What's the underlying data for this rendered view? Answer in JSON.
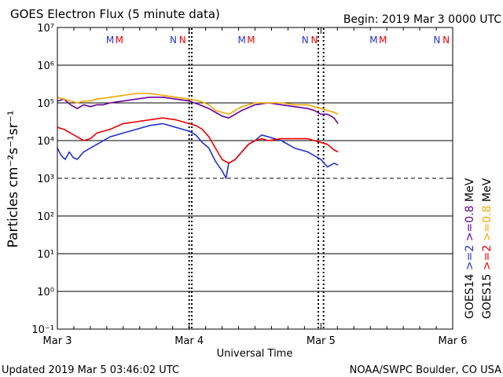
{
  "header": {
    "title": "GOES Electron Flux (5 minute data)",
    "begin": "Begin: 2019 Mar 3 0000 UTC"
  },
  "footer": {
    "updated": "Updated 2019 Mar  5 03:46:02 UTC",
    "credit": "NOAA/SWPC Boulder, CO USA"
  },
  "chart_data": {
    "type": "line",
    "title": "GOES Electron Flux (5 minute data)",
    "xlabel": "Universal Time",
    "ylabel": "Particles cm⁻²s⁻¹sr⁻¹",
    "yscale": "log",
    "ylim_exponent": [
      -1,
      7
    ],
    "xlim_days": [
      0,
      3
    ],
    "x_unit": "days since 2019 Mar 3 0000 UTC",
    "xticks": [
      {
        "day": 0,
        "label": "Mar 3"
      },
      {
        "day": 1,
        "label": "Mar 4"
      },
      {
        "day": 2,
        "label": "Mar 5"
      },
      {
        "day": 3,
        "label": "Mar 6"
      }
    ],
    "yticks": [
      {
        "exp": -1,
        "label": "10⁻¹"
      },
      {
        "exp": 0,
        "label": "10⁰"
      },
      {
        "exp": 1,
        "label": "10¹"
      },
      {
        "exp": 2,
        "label": "10²"
      },
      {
        "exp": 3,
        "label": "10³"
      },
      {
        "exp": 4,
        "label": "10⁴"
      },
      {
        "exp": 5,
        "label": "10⁵"
      },
      {
        "exp": 6,
        "label": "10⁶"
      },
      {
        "exp": 7,
        "label": "10⁷"
      }
    ],
    "gridlines_exp": [
      0,
      1,
      2,
      4,
      5,
      6
    ],
    "threshold": {
      "value": 1000,
      "style": "dashed"
    },
    "eclipse_markers": [
      {
        "day": 0.4,
        "label": "M",
        "color": "#2233cc"
      },
      {
        "day": 0.47,
        "label": "M",
        "color": "#ee0000"
      },
      {
        "day": 0.88,
        "label": "N",
        "color": "#2233cc"
      },
      {
        "day": 0.95,
        "label": "N",
        "color": "#ee0000"
      },
      {
        "day": 1.4,
        "label": "M",
        "color": "#2233cc"
      },
      {
        "day": 1.47,
        "label": "M",
        "color": "#ee0000"
      },
      {
        "day": 1.88,
        "label": "N",
        "color": "#2233cc"
      },
      {
        "day": 1.95,
        "label": "N",
        "color": "#ee0000"
      },
      {
        "day": 2.4,
        "label": "M",
        "color": "#2233cc"
      },
      {
        "day": 2.47,
        "label": "M",
        "color": "#ee0000"
      },
      {
        "day": 2.88,
        "label": "N",
        "color": "#2233cc"
      },
      {
        "day": 2.95,
        "label": "N",
        "color": "#ee0000"
      }
    ],
    "local_noon_lines_days": [
      1.0,
      1.02,
      1.98,
      2.02
    ],
    "legend": {
      "position": "right",
      "rows": [
        {
          "sat": "GOES14",
          "items": [
            {
              "text": ">=2",
              "color": "#2233cc"
            },
            {
              "text": ">=0.8",
              "color": "#660099"
            },
            {
              "text": "MeV",
              "color": "#000000"
            }
          ]
        },
        {
          "sat": "GOES15",
          "items": [
            {
              "text": ">=2",
              "color": "#ee0000"
            },
            {
              "text": ">=0.8",
              "color": "#f0a800"
            },
            {
              "text": "MeV",
              "color": "#000000"
            }
          ]
        }
      ]
    },
    "series": [
      {
        "name": "GOES14 >=0.8 MeV",
        "color": "#660099",
        "points": [
          [
            0.0,
            5.05
          ],
          [
            0.05,
            5.1
          ],
          [
            0.1,
            4.95
          ],
          [
            0.15,
            4.85
          ],
          [
            0.2,
            4.95
          ],
          [
            0.25,
            4.9
          ],
          [
            0.3,
            4.95
          ],
          [
            0.35,
            4.95
          ],
          [
            0.4,
            5.0
          ],
          [
            0.5,
            5.05
          ],
          [
            0.6,
            5.1
          ],
          [
            0.7,
            5.15
          ],
          [
            0.8,
            5.15
          ],
          [
            0.9,
            5.1
          ],
          [
            1.0,
            5.05
          ],
          [
            1.08,
            4.95
          ],
          [
            1.15,
            4.85
          ],
          [
            1.2,
            4.75
          ],
          [
            1.25,
            4.65
          ],
          [
            1.3,
            4.6
          ],
          [
            1.35,
            4.7
          ],
          [
            1.4,
            4.8
          ],
          [
            1.5,
            4.95
          ],
          [
            1.6,
            5.0
          ],
          [
            1.7,
            4.95
          ],
          [
            1.8,
            4.9
          ],
          [
            1.9,
            4.85
          ],
          [
            1.95,
            4.8
          ],
          [
            2.0,
            4.7
          ],
          [
            2.05,
            4.7
          ],
          [
            2.1,
            4.6
          ],
          [
            2.13,
            4.45
          ]
        ]
      },
      {
        "name": "GOES15 >=0.8 MeV",
        "color": "#f0a800",
        "points": [
          [
            0.0,
            5.15
          ],
          [
            0.05,
            5.1
          ],
          [
            0.1,
            5.05
          ],
          [
            0.15,
            5.0
          ],
          [
            0.2,
            5.05
          ],
          [
            0.25,
            5.05
          ],
          [
            0.3,
            5.1
          ],
          [
            0.4,
            5.15
          ],
          [
            0.5,
            5.2
          ],
          [
            0.6,
            5.25
          ],
          [
            0.7,
            5.25
          ],
          [
            0.8,
            5.2
          ],
          [
            0.9,
            5.15
          ],
          [
            1.0,
            5.1
          ],
          [
            1.08,
            5.05
          ],
          [
            1.15,
            4.95
          ],
          [
            1.2,
            4.8
          ],
          [
            1.25,
            4.75
          ],
          [
            1.3,
            4.7
          ],
          [
            1.35,
            4.8
          ],
          [
            1.4,
            4.9
          ],
          [
            1.5,
            5.0
          ],
          [
            1.6,
            5.0
          ],
          [
            1.7,
            5.0
          ],
          [
            1.8,
            4.95
          ],
          [
            1.9,
            4.95
          ],
          [
            1.95,
            4.9
          ],
          [
            2.0,
            4.85
          ],
          [
            2.05,
            4.8
          ],
          [
            2.1,
            4.75
          ],
          [
            2.13,
            4.7
          ]
        ]
      },
      {
        "name": "GOES14 >=2 MeV",
        "color": "#2233cc",
        "points": [
          [
            0.0,
            3.8
          ],
          [
            0.03,
            3.6
          ],
          [
            0.06,
            3.5
          ],
          [
            0.09,
            3.7
          ],
          [
            0.12,
            3.55
          ],
          [
            0.15,
            3.5
          ],
          [
            0.2,
            3.7
          ],
          [
            0.25,
            3.8
          ],
          [
            0.3,
            3.9
          ],
          [
            0.4,
            4.1
          ],
          [
            0.5,
            4.2
          ],
          [
            0.6,
            4.3
          ],
          [
            0.7,
            4.4
          ],
          [
            0.8,
            4.45
          ],
          [
            0.9,
            4.35
          ],
          [
            1.0,
            4.25
          ],
          [
            1.05,
            4.15
          ],
          [
            1.1,
            3.95
          ],
          [
            1.15,
            3.8
          ],
          [
            1.2,
            3.45
          ],
          [
            1.25,
            3.2
          ],
          [
            1.28,
            3.0
          ],
          [
            1.3,
            3.4
          ],
          [
            1.35,
            3.5
          ],
          [
            1.4,
            3.7
          ],
          [
            1.45,
            3.9
          ],
          [
            1.5,
            4.0
          ],
          [
            1.55,
            4.15
          ],
          [
            1.6,
            4.1
          ],
          [
            1.7,
            4.0
          ],
          [
            1.8,
            3.8
          ],
          [
            1.9,
            3.7
          ],
          [
            1.95,
            3.6
          ],
          [
            2.0,
            3.5
          ],
          [
            2.05,
            3.3
          ],
          [
            2.1,
            3.4
          ],
          [
            2.13,
            3.35
          ]
        ]
      },
      {
        "name": "GOES15 >=2 MeV",
        "color": "#ee0000",
        "points": [
          [
            0.0,
            4.35
          ],
          [
            0.05,
            4.3
          ],
          [
            0.1,
            4.2
          ],
          [
            0.15,
            4.1
          ],
          [
            0.2,
            4.0
          ],
          [
            0.25,
            4.05
          ],
          [
            0.3,
            4.2
          ],
          [
            0.4,
            4.3
          ],
          [
            0.5,
            4.45
          ],
          [
            0.6,
            4.5
          ],
          [
            0.7,
            4.55
          ],
          [
            0.8,
            4.6
          ],
          [
            0.9,
            4.55
          ],
          [
            1.0,
            4.45
          ],
          [
            1.05,
            4.4
          ],
          [
            1.1,
            4.3
          ],
          [
            1.15,
            4.1
          ],
          [
            1.2,
            3.8
          ],
          [
            1.25,
            3.5
          ],
          [
            1.3,
            3.4
          ],
          [
            1.35,
            3.5
          ],
          [
            1.4,
            3.7
          ],
          [
            1.45,
            3.9
          ],
          [
            1.5,
            4.0
          ],
          [
            1.55,
            4.05
          ],
          [
            1.6,
            4.0
          ],
          [
            1.7,
            4.05
          ],
          [
            1.8,
            4.05
          ],
          [
            1.9,
            4.05
          ],
          [
            1.95,
            4.0
          ],
          [
            2.0,
            3.95
          ],
          [
            2.05,
            3.9
          ],
          [
            2.1,
            3.75
          ],
          [
            2.13,
            3.7
          ]
        ]
      }
    ]
  }
}
